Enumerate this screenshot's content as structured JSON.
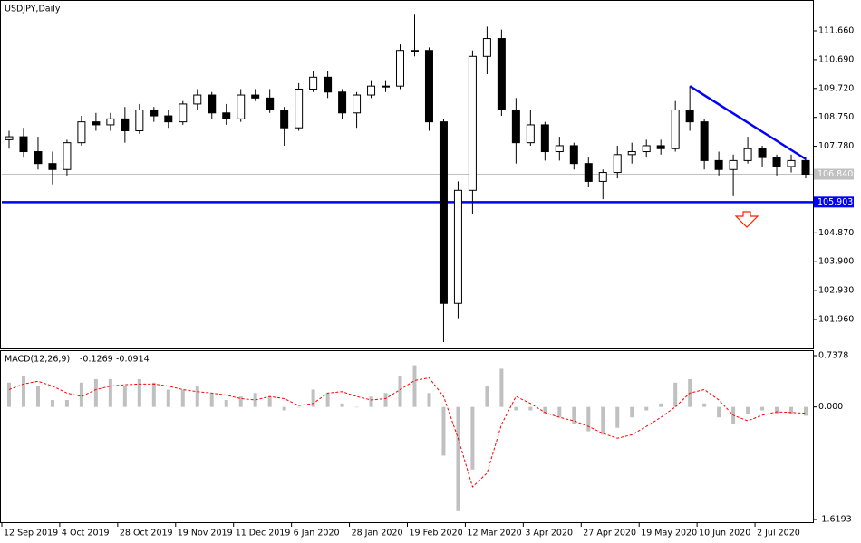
{
  "chart_data": [
    {
      "type": "candlestick",
      "title": "USDJPY,Daily",
      "categories": [
        "12 Sep 2019",
        null,
        null,
        null,
        "4 Oct 2019",
        null,
        null,
        null,
        "28 Oct 2019",
        null,
        null,
        null,
        "19 Nov 2019",
        null,
        null,
        null,
        "11 Dec 2019",
        null,
        null,
        null,
        "6 Jan 2020",
        null,
        null,
        null,
        "28 Jan 2020",
        null,
        null,
        null,
        "19 Feb 2020",
        null,
        null,
        null,
        "12 Mar 2020",
        null,
        null,
        null,
        "3 Apr 2020",
        null,
        null,
        null,
        "27 Apr 2020",
        null,
        null,
        null,
        "19 May 2020",
        null,
        null,
        null,
        "10 Jun 2020",
        null,
        null,
        null,
        "2 Jul 2020",
        null,
        null,
        null
      ],
      "open": [
        108.0,
        108.1,
        107.6,
        107.2,
        107.0,
        107.9,
        108.6,
        108.5,
        108.7,
        108.3,
        109.0,
        108.8,
        108.6,
        109.2,
        109.5,
        108.9,
        108.7,
        109.5,
        109.4,
        109.0,
        108.4,
        109.7,
        110.1,
        109.6,
        108.9,
        109.5,
        109.8,
        109.8,
        111.0,
        111.0,
        108.6,
        102.5,
        106.3,
        110.8,
        111.4,
        109.0,
        107.9,
        108.5,
        107.6,
        107.8,
        107.2,
        106.6,
        106.9,
        107.5,
        107.6,
        107.8,
        107.7,
        109.0,
        108.6,
        107.3,
        107.0,
        107.3,
        107.7,
        107.4,
        107.1,
        107.3
      ],
      "high": [
        108.3,
        108.4,
        108.1,
        107.6,
        108.0,
        108.8,
        108.9,
        108.9,
        109.1,
        109.2,
        109.1,
        109.0,
        109.3,
        109.7,
        109.6,
        109.2,
        109.7,
        109.7,
        109.7,
        109.1,
        109.9,
        110.3,
        110.3,
        109.7,
        109.6,
        110.0,
        110.0,
        111.2,
        112.2,
        111.1,
        108.7,
        106.6,
        111.0,
        111.8,
        111.7,
        109.4,
        109.0,
        108.6,
        108.1,
        107.9,
        107.4,
        107.0,
        107.8,
        107.9,
        108.0,
        108.0,
        109.3,
        109.8,
        108.7,
        107.6,
        107.5,
        108.1,
        107.8,
        107.5,
        107.5,
        107.4
      ],
      "low": [
        107.7,
        107.4,
        107.0,
        106.5,
        106.8,
        107.8,
        108.3,
        108.3,
        107.9,
        108.2,
        108.6,
        108.4,
        108.5,
        109.0,
        108.7,
        108.5,
        108.6,
        109.3,
        108.9,
        107.8,
        108.3,
        109.6,
        109.4,
        108.7,
        108.4,
        109.4,
        109.6,
        109.7,
        110.8,
        108.3,
        101.2,
        102.0,
        105.5,
        110.2,
        108.8,
        107.2,
        107.8,
        107.3,
        107.3,
        107.0,
        106.4,
        106.0,
        106.7,
        107.2,
        107.4,
        107.5,
        107.6,
        108.3,
        107.0,
        106.8,
        106.1,
        107.2,
        107.1,
        106.8,
        106.9,
        106.7
      ],
      "close": [
        108.1,
        107.6,
        107.2,
        107.0,
        107.9,
        108.6,
        108.5,
        108.7,
        108.3,
        109.0,
        108.8,
        108.6,
        109.2,
        109.5,
        108.9,
        108.7,
        109.5,
        109.4,
        109.0,
        108.4,
        109.7,
        110.1,
        109.6,
        108.9,
        109.5,
        109.8,
        109.8,
        111.0,
        111.0,
        108.6,
        102.5,
        106.3,
        110.8,
        111.4,
        109.0,
        107.9,
        108.5,
        107.6,
        107.8,
        107.2,
        106.6,
        106.9,
        107.5,
        107.6,
        107.8,
        107.7,
        109.0,
        108.6,
        107.3,
        107.0,
        107.3,
        107.7,
        107.4,
        107.1,
        107.3,
        106.84
      ],
      "ylim": [
        100.987,
        112.603
      ],
      "yticks": [
        {
          "value": 111.66,
          "label": "111.660"
        },
        {
          "value": 110.69,
          "label": "110.690"
        },
        {
          "value": 109.72,
          "label": "109.720"
        },
        {
          "value": 108.75,
          "label": "108.750"
        },
        {
          "value": 107.78,
          "label": "107.780"
        },
        {
          "value": 104.87,
          "label": "104.870"
        },
        {
          "value": 103.9,
          "label": "103.900"
        },
        {
          "value": 102.93,
          "label": "102.930"
        },
        {
          "value": 101.96,
          "label": "101.960"
        }
      ],
      "price_lines": [
        {
          "value": 106.84,
          "label": "106.840",
          "color": "#c0c0c0"
        },
        {
          "value": 105.903,
          "color": "#0000ff"
        }
      ],
      "trendline": {
        "start": 47,
        "end": 55,
        "values": [
          109.8,
          107.35
        ],
        "color": "#0000ff"
      }
    },
    {
      "type": "macd",
      "title": "MACD(12,26,9)",
      "histogram": [
        0.35,
        0.45,
        0.3,
        0.1,
        0.1,
        0.35,
        0.4,
        0.4,
        0.3,
        0.4,
        0.35,
        0.25,
        0.25,
        0.3,
        0.2,
        0.1,
        0.15,
        0.2,
        0.15,
        -0.05,
        0.0,
        0.25,
        0.2,
        0.05,
        0.0,
        0.15,
        0.2,
        0.45,
        0.6,
        0.2,
        -0.7,
        -1.5,
        -0.9,
        0.3,
        0.55,
        -0.05,
        -0.05,
        -0.1,
        -0.15,
        -0.25,
        -0.35,
        -0.4,
        -0.3,
        -0.15,
        -0.05,
        0.05,
        0.35,
        0.4,
        0.05,
        -0.15,
        -0.25,
        -0.1,
        -0.05,
        -0.1,
        -0.1,
        -0.1269
      ],
      "signal": [
        0.25,
        0.33,
        0.37,
        0.3,
        0.2,
        0.15,
        0.25,
        0.3,
        0.32,
        0.33,
        0.33,
        0.3,
        0.25,
        0.22,
        0.2,
        0.17,
        0.12,
        0.1,
        0.15,
        0.12,
        0.02,
        0.05,
        0.2,
        0.22,
        0.15,
        0.1,
        0.12,
        0.25,
        0.38,
        0.42,
        0.15,
        -0.45,
        -1.15,
        -0.95,
        -0.25,
        0.15,
        0.05,
        -0.08,
        -0.15,
        -0.2,
        -0.28,
        -0.38,
        -0.45,
        -0.4,
        -0.28,
        -0.15,
        0.0,
        0.2,
        0.25,
        0.1,
        -0.12,
        -0.2,
        -0.12,
        -0.07,
        -0.08,
        -0.0914
      ],
      "histogram_color": "#c0c0c0",
      "signal_color": "#ff0000",
      "ylim": [
        -1.671,
        0.803
      ],
      "yticks": [
        0.7378,
        {
          "value": 0,
          "label": "0.000"
        },
        -1.6193
      ]
    }
  ]
}
